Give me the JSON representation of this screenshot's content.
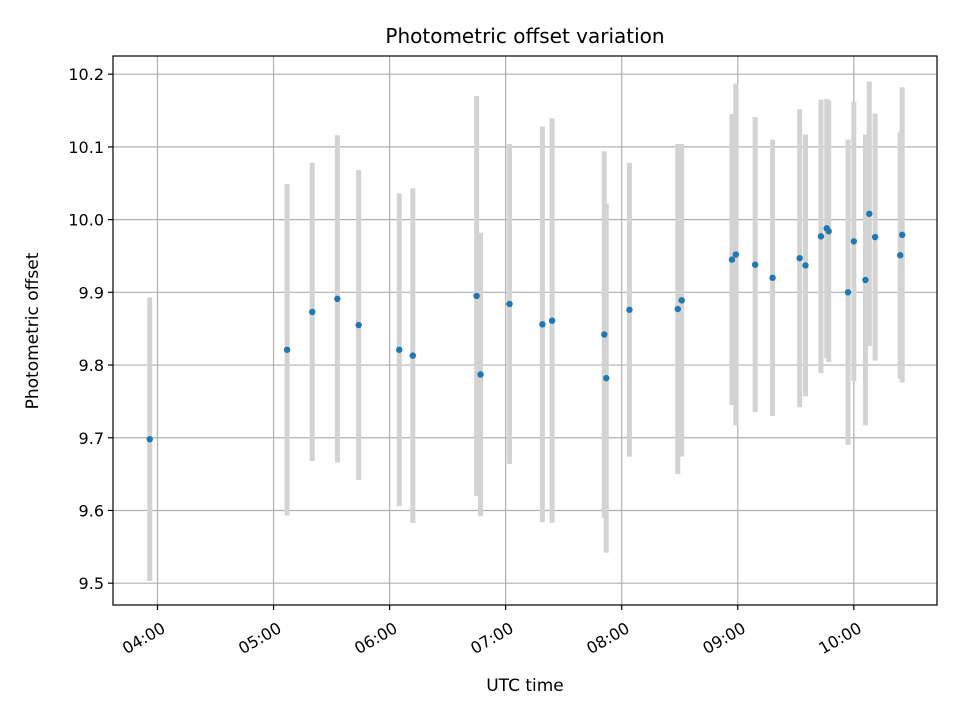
{
  "chart_data": {
    "type": "scatter",
    "title": "Photometric offset variation",
    "xlabel": "UTC time",
    "ylabel": "Photometric offset",
    "x_ticks": [
      "04:00",
      "05:00",
      "06:00",
      "07:00",
      "08:00",
      "09:00",
      "10:00"
    ],
    "y_ticks": [
      "9.5",
      "9.6",
      "9.7",
      "9.8",
      "9.9",
      "10.0",
      "10.1",
      "10.2"
    ],
    "xlim": [
      "03:37",
      "10:43"
    ],
    "ylim": [
      9.47,
      10.225
    ],
    "grid": true,
    "colors": {
      "point": "#1f77b4",
      "errorbar": "#d3d3d3",
      "grid": "#b0b0b0"
    },
    "points": [
      {
        "x": "03:56",
        "y": 9.698,
        "err": 0.195
      },
      {
        "x": "05:07",
        "y": 9.821,
        "err": 0.228
      },
      {
        "x": "05:20",
        "y": 9.873,
        "err": 0.205
      },
      {
        "x": "05:33",
        "y": 9.891,
        "err": 0.225
      },
      {
        "x": "05:44",
        "y": 9.855,
        "err": 0.213
      },
      {
        "x": "06:05",
        "y": 9.821,
        "err": 0.215
      },
      {
        "x": "06:12",
        "y": 9.813,
        "err": 0.23
      },
      {
        "x": "06:45",
        "y": 9.895,
        "err": 0.275
      },
      {
        "x": "06:47",
        "y": 9.787,
        "err": 0.195
      },
      {
        "x": "07:02",
        "y": 9.884,
        "err": 0.22
      },
      {
        "x": "07:19",
        "y": 9.856,
        "err": 0.272
      },
      {
        "x": "07:24",
        "y": 9.861,
        "err": 0.278
      },
      {
        "x": "07:51",
        "y": 9.842,
        "err": 0.252
      },
      {
        "x": "07:52",
        "y": 9.782,
        "err": 0.24
      },
      {
        "x": "08:04",
        "y": 9.876,
        "err": 0.202
      },
      {
        "x": "08:29",
        "y": 9.877,
        "err": 0.227
      },
      {
        "x": "08:31",
        "y": 9.889,
        "err": 0.215
      },
      {
        "x": "08:57",
        "y": 9.945,
        "err": 0.2
      },
      {
        "x": "08:59",
        "y": 9.952,
        "err": 0.235
      },
      {
        "x": "09:09",
        "y": 9.938,
        "err": 0.203
      },
      {
        "x": "09:18",
        "y": 9.92,
        "err": 0.19
      },
      {
        "x": "09:32",
        "y": 9.947,
        "err": 0.205
      },
      {
        "x": "09:35",
        "y": 9.937,
        "err": 0.18
      },
      {
        "x": "09:43",
        "y": 9.977,
        "err": 0.188
      },
      {
        "x": "09:46",
        "y": 9.988,
        "err": 0.178
      },
      {
        "x": "09:47",
        "y": 9.984,
        "err": 0.18
      },
      {
        "x": "09:57",
        "y": 9.9,
        "err": 0.21
      },
      {
        "x": "10:00",
        "y": 9.97,
        "err": 0.192
      },
      {
        "x": "10:06",
        "y": 9.917,
        "err": 0.2
      },
      {
        "x": "10:08",
        "y": 10.008,
        "err": 0.182
      },
      {
        "x": "10:11",
        "y": 9.976,
        "err": 0.17
      },
      {
        "x": "10:24",
        "y": 9.951,
        "err": 0.17
      },
      {
        "x": "10:25",
        "y": 9.979,
        "err": 0.203
      }
    ]
  }
}
